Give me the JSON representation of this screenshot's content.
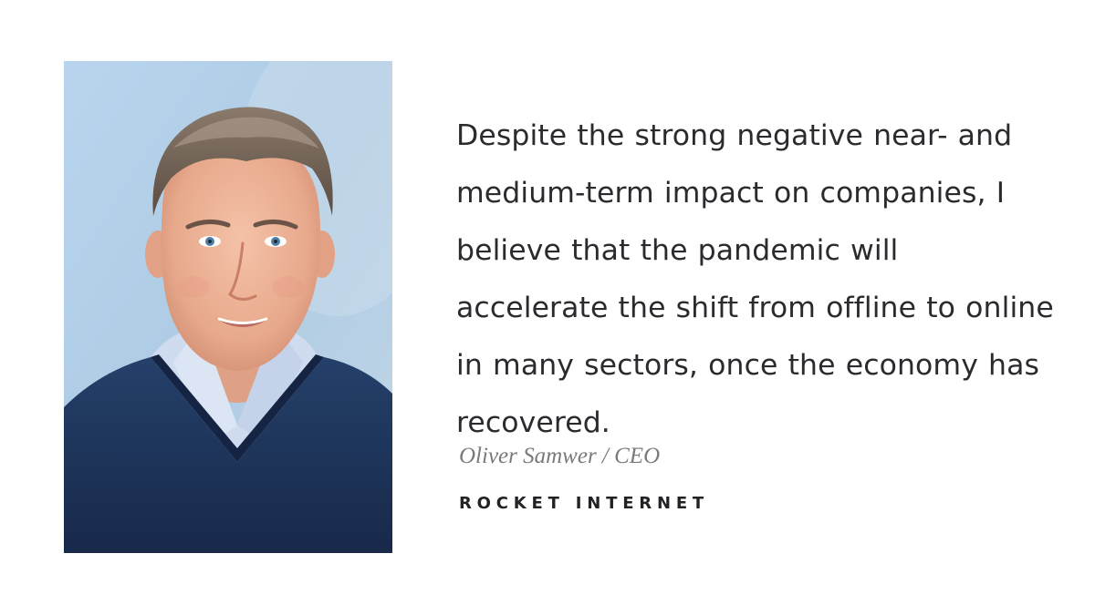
{
  "quote": {
    "text": "Despite the strong negative near- and medium-term impact on companies, I believe that the pandemic will accelerate the shift from offline to online in many sectors, once the economy has recovered."
  },
  "attribution": {
    "author": "Oliver Samwer / CEO",
    "company": "ROCKET INTERNET"
  },
  "portrait": {
    "background_color": "#b8d2e6",
    "sweater_color": "#1f3558",
    "shirt_color": "#cfdcef"
  }
}
